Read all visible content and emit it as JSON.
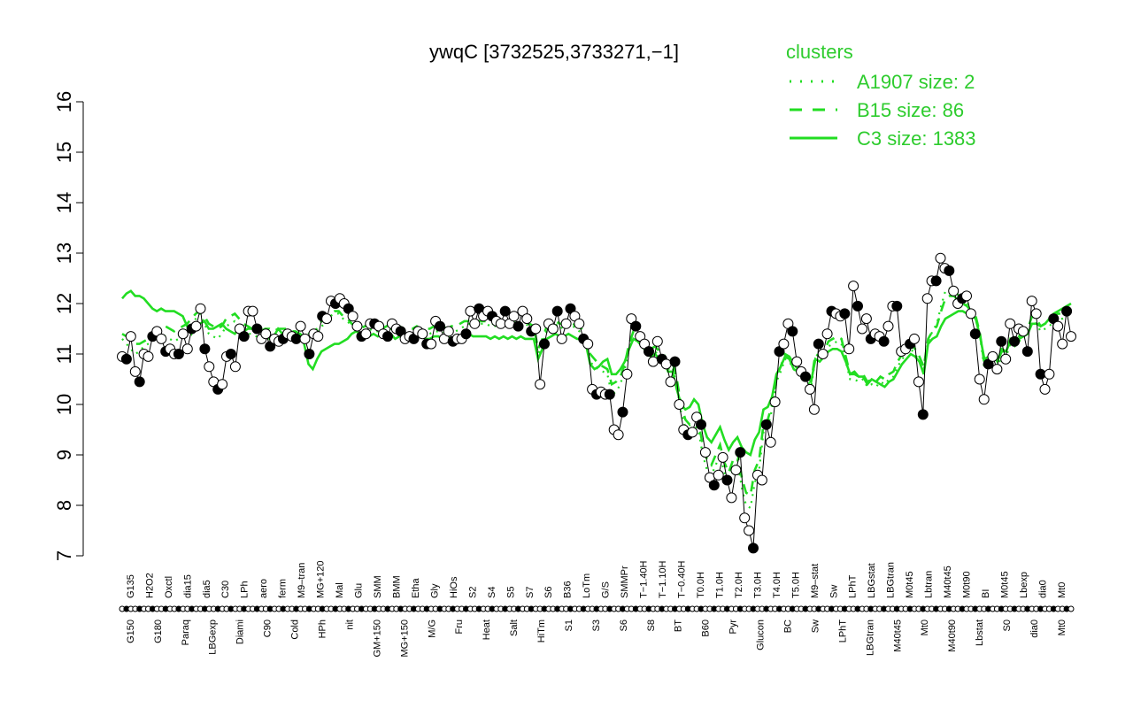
{
  "chart_data": {
    "type": "line",
    "title": "ywqC [3732525,3733271,−1]",
    "xlabel": "",
    "ylabel": "",
    "ylim": [
      7,
      16
    ],
    "yticks": [
      7,
      8,
      9,
      10,
      11,
      12,
      13,
      14,
      15,
      16
    ],
    "grid": false,
    "legend": {
      "title": "clusters",
      "placement": "top-right",
      "entries": [
        {
          "label": "A1907 size: 2",
          "style": "dotted"
        },
        {
          "label": "B15 size: 86",
          "style": "dashed"
        },
        {
          "label": "C3 size: 1383",
          "style": "solid"
        }
      ]
    },
    "top_labels": [
      "G135",
      "H2O2",
      "Oxctl",
      "dia15",
      "dia5",
      "C30",
      "LPh",
      "aero",
      "ferm",
      "M9–tran",
      "MG+120",
      "Mal",
      "Glu",
      "SMM",
      "BMM",
      "Etha",
      "Gly",
      "HiOs",
      "S2",
      "S4",
      "S5",
      "S7",
      "S6",
      "B36",
      "LoTm",
      "G/S",
      "SMMPr",
      "T−1.40H",
      "T−1.10H",
      "T−0.40H",
      "T0.0H",
      "T1.0H",
      "T2.0H",
      "T3.0H",
      "T4.0H",
      "T5.0H",
      "M9–stat",
      "Sw",
      "LPhT",
      "LBGstat",
      "LBGtran",
      "M0t45",
      "Lbtran",
      "M40t45",
      "M0t90",
      "BI",
      "M0t45",
      "Lbexp",
      "dia0",
      "Mt0"
    ],
    "bottom_labels": [
      "G150",
      "G180",
      "Paraq",
      "LBGexp",
      "Diami",
      "C90",
      "Cold",
      "HPh",
      "nit",
      "GM+150",
      "MG+150",
      "M/G",
      "Fru",
      "Heat",
      "Salt",
      "HiTm",
      "S1",
      "S3",
      "S6",
      "S8",
      "BT",
      "B60",
      "Pyr",
      "Glucon",
      "BC",
      "Sw",
      "LPhT",
      "LBGtran",
      "M40t45",
      "Mt0",
      "M40t90",
      "Lbstat",
      "S0",
      "dia0",
      "Mt0"
    ],
    "series_values": [
      10.95,
      10.9,
      11.35,
      10.65,
      10.45,
      11.0,
      10.95,
      11.35,
      11.45,
      11.3,
      11.05,
      11.1,
      11.0,
      11.0,
      11.4,
      11.1,
      11.5,
      11.55,
      11.9,
      11.1,
      10.75,
      10.45,
      10.3,
      10.4,
      10.95,
      11.0,
      10.75,
      11.5,
      11.35,
      11.85,
      11.85,
      11.5,
      11.3,
      11.4,
      11.15,
      11.3,
      11.25,
      11.3,
      11.4,
      11.35,
      11.3,
      11.55,
      11.3,
      11.0,
      11.4,
      11.35,
      11.75,
      11.7,
      12.05,
      12.0,
      12.1,
      12.0,
      11.9,
      11.75,
      11.55,
      11.35,
      11.4,
      11.6,
      11.6,
      11.55,
      11.4,
      11.35,
      11.6,
      11.5,
      11.45,
      11.3,
      11.35,
      11.3,
      11.45,
      11.4,
      11.2,
      11.2,
      11.65,
      11.55,
      11.3,
      11.45,
      11.25,
      11.3,
      11.3,
      11.4,
      11.85,
      11.6,
      11.9,
      11.75,
      11.85,
      11.75,
      11.65,
      11.6,
      11.85,
      11.6,
      11.75,
      11.55,
      11.85,
      11.7,
      11.45,
      11.5,
      10.4,
      11.2,
      11.6,
      11.5,
      11.85,
      11.3,
      11.6,
      11.9,
      11.75,
      11.6,
      11.3,
      11.2,
      10.3,
      10.2,
      10.25,
      10.2,
      10.2,
      9.5,
      9.4,
      9.85,
      10.6,
      11.7,
      11.55,
      11.35,
      11.2,
      11.05,
      10.85,
      11.25,
      10.9,
      10.8,
      10.45,
      10.85,
      10.0,
      9.5,
      9.4,
      9.45,
      9.75,
      9.6,
      9.05,
      8.55,
      8.4,
      8.6,
      8.95,
      8.5,
      8.15,
      8.7,
      9.05,
      7.75,
      7.5,
      7.15,
      8.6,
      8.5,
      9.6,
      9.25,
      10.05,
      11.05,
      11.2,
      11.6,
      11.45,
      10.85,
      10.65,
      10.55,
      10.3,
      9.9,
      11.2,
      11.0,
      11.4,
      11.85,
      11.8,
      11.75,
      11.8,
      11.1,
      12.35,
      11.95,
      11.5,
      11.7,
      11.3,
      11.4,
      11.35,
      11.25,
      11.55,
      11.95,
      11.95,
      11.05,
      11.1,
      11.2,
      11.3,
      10.45,
      9.8,
      12.1,
      12.45,
      12.45,
      12.9,
      12.7,
      12.65,
      12.25,
      12.0,
      12.1,
      12.15,
      11.8,
      11.4,
      10.5,
      10.1,
      10.8,
      10.95,
      10.7,
      11.25,
      10.9,
      11.6,
      11.25,
      11.5,
      11.45,
      11.05,
      12.05,
      11.8,
      10.6,
      10.3,
      10.6,
      11.7,
      11.55,
      11.2,
      11.85,
      11.35
    ],
    "series": [
      {
        "name": "C3 size: 1383",
        "style": "solid",
        "values": [
          12.1,
          12.2,
          12.25,
          12.15,
          12.15,
          12.1,
          12.0,
          11.9,
          11.85,
          11.9,
          11.85,
          11.85,
          11.85,
          11.8,
          11.75,
          11.55,
          11.4,
          11.55,
          11.6,
          11.65,
          11.5,
          11.5,
          11.55,
          11.6,
          11.5,
          11.45,
          11.4,
          11.5,
          11.45,
          11.5,
          11.5,
          11.55,
          11.45,
          11.45,
          11.3,
          11.35,
          11.5,
          11.4,
          11.3,
          11.35,
          11.35,
          11.4,
          11.2,
          10.8,
          10.7,
          10.9,
          11.05,
          11.1,
          11.15,
          11.2,
          11.2,
          11.25,
          11.3,
          11.4,
          11.45,
          11.4,
          11.35,
          11.35,
          11.4,
          11.35,
          11.4,
          11.35,
          11.4,
          11.3,
          11.35,
          11.4,
          11.35,
          11.3,
          11.4,
          11.35,
          11.3,
          11.3,
          11.35,
          11.35,
          11.3,
          11.35,
          11.3,
          11.3,
          11.3,
          11.35,
          11.4,
          11.35,
          11.35,
          11.35,
          11.35,
          11.3,
          11.35,
          11.3,
          11.35,
          11.3,
          11.35,
          11.3,
          11.35,
          11.3,
          11.3,
          11.3,
          10.9,
          11.1,
          11.3,
          11.35,
          11.4,
          11.35,
          11.35,
          11.4,
          11.35,
          11.3,
          11.3,
          11.2,
          10.8,
          10.7,
          10.75,
          10.85,
          10.9,
          10.6,
          10.6,
          10.7,
          10.85,
          11.1,
          11.3,
          11.25,
          11.15,
          11.05,
          10.95,
          11.0,
          10.9,
          10.85,
          10.65,
          10.65,
          10.3,
          10.0,
          9.9,
          9.95,
          10.1,
          10.0,
          9.6,
          9.35,
          9.25,
          9.4,
          9.55,
          9.3,
          9.1,
          9.25,
          9.35,
          9.15,
          9.05,
          9.0,
          9.3,
          9.45,
          9.9,
          9.95,
          10.15,
          10.6,
          10.75,
          10.95,
          10.9,
          10.7,
          10.65,
          10.6,
          10.55,
          10.45,
          10.9,
          10.85,
          10.95,
          11.05,
          11.1,
          11.1,
          11.05,
          10.85,
          10.6,
          10.65,
          10.55,
          10.55,
          10.4,
          10.5,
          10.45,
          10.4,
          10.35,
          10.45,
          10.5,
          10.65,
          10.8,
          10.9,
          11.0,
          10.95,
          10.85,
          10.6,
          11.2,
          11.3,
          11.35,
          11.55,
          11.7,
          11.75,
          11.8,
          11.85,
          11.85,
          11.8,
          11.75,
          11.7,
          11.35,
          10.9,
          10.95,
          11.0,
          10.85,
          11.1,
          11.05,
          11.25,
          11.2,
          11.3,
          11.35,
          11.4,
          11.6,
          11.6,
          11.55,
          11.6,
          11.7,
          11.8,
          11.85,
          11.9,
          11.95,
          12.0
        ]
      },
      {
        "name": "B15 size: 86",
        "style": "dashed",
        "values": [
          11.4,
          11.35,
          11.3,
          11.2,
          11.2,
          11.25,
          11.3,
          11.35,
          11.45,
          11.5,
          11.55,
          11.5,
          11.45,
          11.5,
          11.55,
          11.6,
          11.7,
          11.8,
          11.85,
          11.75,
          11.6,
          11.55,
          11.5,
          11.55,
          11.7,
          11.75,
          11.8,
          11.7,
          11.6,
          11.55,
          11.5,
          11.45,
          11.45,
          11.5,
          11.5,
          11.45,
          11.5,
          11.5,
          11.5,
          11.45,
          11.45,
          11.4,
          11.35,
          11.4,
          11.45,
          11.5,
          11.65,
          11.7,
          11.8,
          11.85,
          11.85,
          11.75,
          11.7,
          11.6,
          11.55,
          11.5,
          11.55,
          11.55,
          11.5,
          11.5,
          11.5,
          11.55,
          11.6,
          11.55,
          11.55,
          11.5,
          11.5,
          11.5,
          11.55,
          11.5,
          11.5,
          11.5,
          11.55,
          11.5,
          11.55,
          11.5,
          11.55,
          11.55,
          11.6,
          11.65,
          11.65,
          11.6,
          11.65,
          11.65,
          11.65,
          11.6,
          11.6,
          11.65,
          11.65,
          11.6,
          11.65,
          11.6,
          11.65,
          11.65,
          11.6,
          11.55,
          11.1,
          11.3,
          11.55,
          11.6,
          11.65,
          11.6,
          11.6,
          11.65,
          11.6,
          11.55,
          11.5,
          11.3,
          11.0,
          10.9,
          10.8,
          10.75,
          10.7,
          10.4,
          10.45,
          10.55,
          10.8,
          11.2,
          11.45,
          11.4,
          11.3,
          11.2,
          11.1,
          11.15,
          11.05,
          11.0,
          10.8,
          10.85,
          10.5,
          10.0,
          9.7,
          9.6,
          9.75,
          9.65,
          9.2,
          8.9,
          8.8,
          9.0,
          9.2,
          8.85,
          8.65,
          8.9,
          9.05,
          8.55,
          8.25,
          8.2,
          8.7,
          8.9,
          9.6,
          9.7,
          10.0,
          10.55,
          10.75,
          11.0,
          10.95,
          10.8,
          10.7,
          10.6,
          10.6,
          10.45,
          11.0,
          10.95,
          11.05,
          11.25,
          11.3,
          11.35,
          11.3,
          10.95,
          10.6,
          10.6,
          10.55,
          10.6,
          10.45,
          10.5,
          10.45,
          10.55,
          10.5,
          10.6,
          10.65,
          10.85,
          11.0,
          11.1,
          11.2,
          11.1,
          10.95,
          10.75,
          11.3,
          11.45,
          11.55,
          11.85,
          12.1,
          12.15,
          12.15,
          12.05,
          12.0,
          11.95,
          11.85,
          11.75,
          11.4,
          10.8,
          10.85,
          10.95,
          10.85,
          11.05,
          11.05,
          11.3,
          11.25,
          11.35,
          11.45,
          11.5,
          11.75,
          11.7,
          11.55,
          11.6,
          11.65,
          11.75,
          11.8,
          11.8,
          11.85,
          11.9
        ]
      },
      {
        "name": "A1907 size: 2",
        "style": "dotted",
        "values": [
          11.3,
          11.2,
          11.1,
          11.0,
          11.05,
          11.15,
          11.2,
          11.25,
          11.35,
          11.4,
          11.35,
          11.3,
          11.25,
          11.3,
          11.4,
          11.45,
          11.55,
          11.7,
          11.8,
          11.6,
          11.4,
          11.35,
          11.3,
          11.4,
          11.55,
          11.6,
          11.65,
          11.55,
          11.45,
          11.4,
          11.4,
          11.35,
          11.35,
          11.4,
          11.4,
          11.35,
          11.4,
          11.4,
          11.35,
          11.35,
          11.35,
          11.3,
          11.25,
          11.25,
          11.35,
          11.4,
          11.55,
          11.6,
          11.75,
          11.8,
          11.8,
          11.7,
          11.65,
          11.55,
          11.45,
          11.4,
          11.45,
          11.5,
          11.45,
          11.45,
          11.45,
          11.45,
          11.5,
          11.45,
          11.45,
          11.4,
          11.4,
          11.4,
          11.45,
          11.4,
          11.4,
          11.4,
          11.45,
          11.45,
          11.45,
          11.4,
          11.45,
          11.45,
          11.5,
          11.55,
          11.6,
          11.55,
          11.6,
          11.6,
          11.6,
          11.55,
          11.55,
          11.6,
          11.6,
          11.55,
          11.6,
          11.55,
          11.6,
          11.6,
          11.55,
          11.5,
          11.0,
          11.2,
          11.45,
          11.5,
          11.6,
          11.5,
          11.55,
          11.6,
          11.55,
          11.5,
          11.4,
          11.2,
          10.85,
          10.75,
          10.7,
          10.65,
          10.6,
          10.2,
          10.25,
          10.4,
          10.7,
          11.1,
          11.35,
          11.3,
          11.2,
          11.1,
          11.0,
          11.05,
          10.95,
          10.85,
          10.7,
          10.75,
          10.35,
          9.85,
          9.55,
          9.45,
          9.6,
          9.5,
          9.0,
          8.7,
          8.6,
          8.8,
          9.0,
          8.65,
          8.45,
          8.7,
          8.9,
          8.35,
          8.0,
          7.95,
          8.45,
          8.7,
          9.45,
          9.55,
          9.9,
          10.45,
          10.65,
          10.9,
          10.85,
          10.7,
          10.6,
          10.5,
          10.5,
          10.35,
          10.9,
          10.85,
          10.95,
          11.15,
          11.2,
          11.25,
          11.2,
          10.85,
          10.5,
          10.5,
          10.45,
          10.5,
          10.35,
          10.4,
          10.35,
          10.45,
          10.4,
          10.5,
          10.55,
          10.75,
          10.9,
          11.0,
          11.1,
          11.0,
          10.85,
          10.65,
          11.25,
          11.45,
          11.6,
          11.95,
          12.25,
          12.3,
          12.35,
          12.15,
          12.05,
          12.0,
          11.85,
          11.7,
          11.35,
          10.7,
          10.75,
          10.85,
          10.75,
          10.95,
          10.95,
          11.2,
          11.15,
          11.25,
          11.35,
          11.4,
          11.65,
          11.6,
          11.45,
          11.5,
          11.55,
          11.65,
          11.7,
          11.7,
          11.75,
          11.8
        ]
      }
    ]
  }
}
